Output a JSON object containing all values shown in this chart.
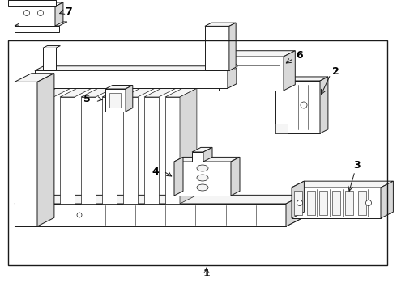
{
  "bg": "#ffffff",
  "border_lw": 1.0,
  "lc": "#1a1a1a",
  "lw_main": 0.7,
  "lw_thin": 0.4,
  "fig_w": 4.9,
  "fig_h": 3.6,
  "dpi": 100,
  "fc_light": "#f5f5f5",
  "fc_mid": "#e8e8e8",
  "fc_dark": "#d8d8d8",
  "fc_white": "#ffffff"
}
